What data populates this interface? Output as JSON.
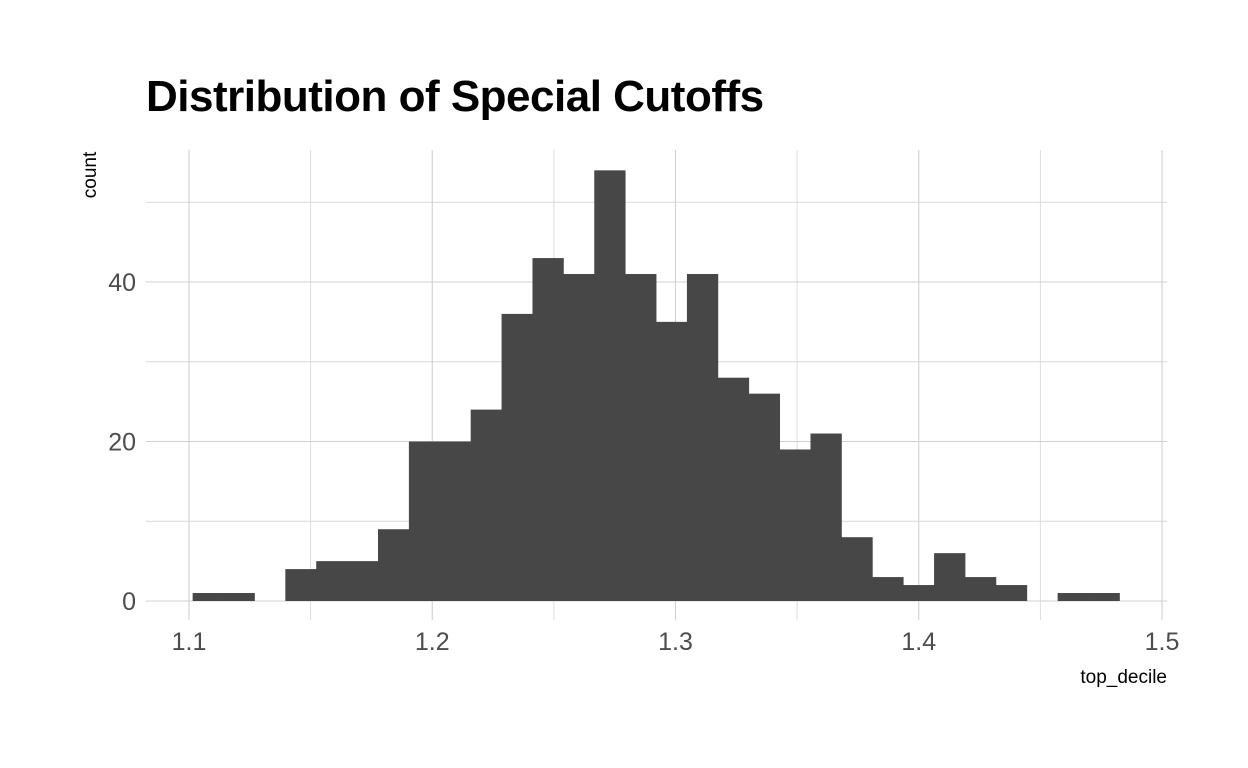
{
  "chart_data": {
    "type": "bar",
    "title": "Distribution of Special Cutoffs",
    "xlabel": "top_decile",
    "ylabel": "count",
    "xlim": [
      1.1,
      1.5
    ],
    "ylim": [
      0,
      54
    ],
    "x_ticks": [
      "1.1",
      "1.2",
      "1.3",
      "1.4",
      "1.5"
    ],
    "x_tick_values": [
      1.1,
      1.2,
      1.3,
      1.4,
      1.5
    ],
    "y_ticks": [
      "0",
      "20",
      "40"
    ],
    "y_tick_values": [
      0,
      20,
      40
    ],
    "grid": true,
    "bar_color": "#474747",
    "bin_width": 0.0127,
    "bins": [
      {
        "x0": 1.1015,
        "count": 1
      },
      {
        "x0": 1.1142,
        "count": 1
      },
      {
        "x0": 1.1269,
        "count": 0
      },
      {
        "x0": 1.1396,
        "count": 4
      },
      {
        "x0": 1.1523,
        "count": 5
      },
      {
        "x0": 1.165,
        "count": 5
      },
      {
        "x0": 1.1777,
        "count": 9
      },
      {
        "x0": 1.1904,
        "count": 20
      },
      {
        "x0": 1.2031,
        "count": 20
      },
      {
        "x0": 1.2158,
        "count": 24
      },
      {
        "x0": 1.2285,
        "count": 36
      },
      {
        "x0": 1.2412,
        "count": 43
      },
      {
        "x0": 1.2539,
        "count": 41
      },
      {
        "x0": 1.2666,
        "count": 54
      },
      {
        "x0": 1.2793,
        "count": 41
      },
      {
        "x0": 1.292,
        "count": 35
      },
      {
        "x0": 1.3047,
        "count": 41
      },
      {
        "x0": 1.3174,
        "count": 28
      },
      {
        "x0": 1.3301,
        "count": 26
      },
      {
        "x0": 1.3428,
        "count": 19
      },
      {
        "x0": 1.3555,
        "count": 21
      },
      {
        "x0": 1.3682,
        "count": 8
      },
      {
        "x0": 1.3809,
        "count": 3
      },
      {
        "x0": 1.3936,
        "count": 2
      },
      {
        "x0": 1.4063,
        "count": 6
      },
      {
        "x0": 1.419,
        "count": 3
      },
      {
        "x0": 1.4317,
        "count": 2
      },
      {
        "x0": 1.4444,
        "count": 0
      },
      {
        "x0": 1.4571,
        "count": 1
      },
      {
        "x0": 1.4698,
        "count": 1
      }
    ]
  }
}
